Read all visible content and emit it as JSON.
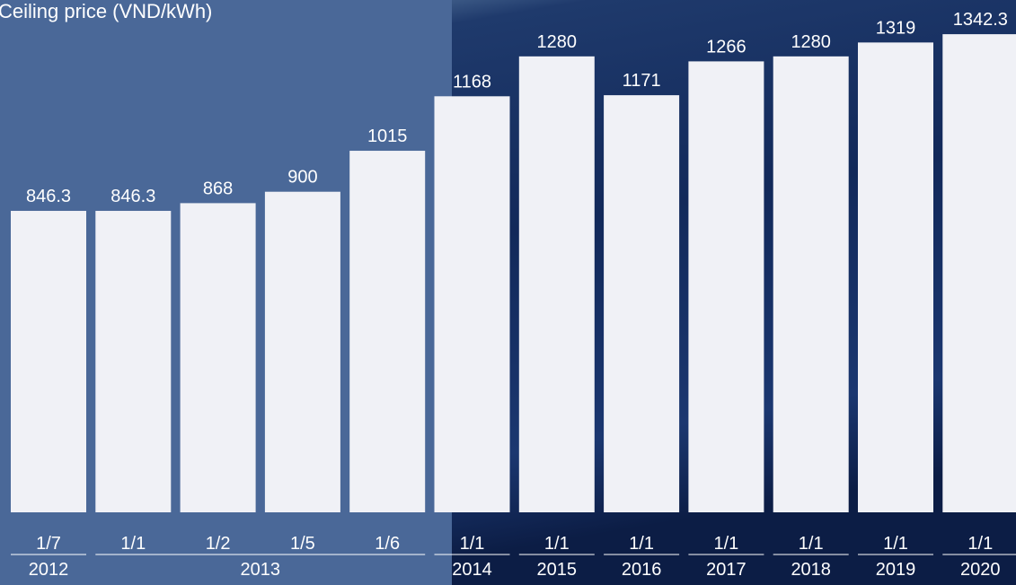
{
  "chart_data": {
    "type": "bar",
    "title": "Ceiling price (VND/kWh)",
    "categories": [
      "1/7",
      "1/1",
      "1/2",
      "1/5",
      "1/6",
      "1/1",
      "1/1",
      "1/1",
      "1/1",
      "1/1",
      "1/1",
      "1/1"
    ],
    "groups": [
      "2012",
      "2013",
      null,
      null,
      null,
      "2014",
      "2015",
      "2016",
      "2017",
      "2018",
      "2019",
      "2020"
    ],
    "values": [
      846.3,
      846.3,
      868,
      900,
      1015,
      1168,
      1280,
      1171,
      1266,
      1280,
      1319,
      1342.3
    ],
    "color": "#f0f1f6"
  }
}
